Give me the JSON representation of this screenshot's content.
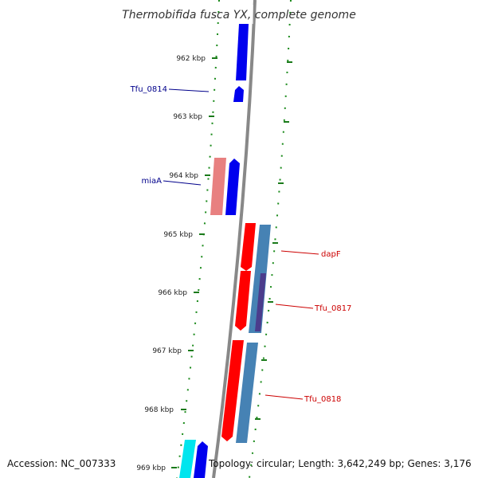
{
  "title": "Thermobifida fusca YX, complete genome",
  "footer": {
    "accession": "Accession: NC_007333",
    "topology": "Topology: circular; Length: 3,642,249 bp; Genes: 3,176"
  },
  "ticks": [
    "962 kbp",
    "963 kbp",
    "964 kbp",
    "965 kbp",
    "966 kbp",
    "967 kbp",
    "968 kbp",
    "969 kbp"
  ],
  "genes": {
    "tfu_0814": {
      "label": "Tfu_0814",
      "color": "#00008b"
    },
    "miaA": {
      "label": "miaA",
      "color": "#00008b"
    },
    "dapF": {
      "label": "dapF",
      "color": "#cc0000"
    },
    "tfu_0817": {
      "label": "Tfu_0817",
      "color": "#cc0000"
    },
    "tfu_0818": {
      "label": "Tfu_0818",
      "color": "#cc0000"
    }
  },
  "colors": {
    "backbone": "#888888",
    "forward_strand": "#0000ff",
    "reverse_strand_red": "#ff0000",
    "pink_feature": "#e88080",
    "steel_blue_feature": "#4682b4",
    "purple_feature": "#4b3c8c",
    "cyan_feature": "#00e5ee",
    "tick_marks": "#1a7a1a",
    "gc_dots": "#1a8a1a"
  }
}
